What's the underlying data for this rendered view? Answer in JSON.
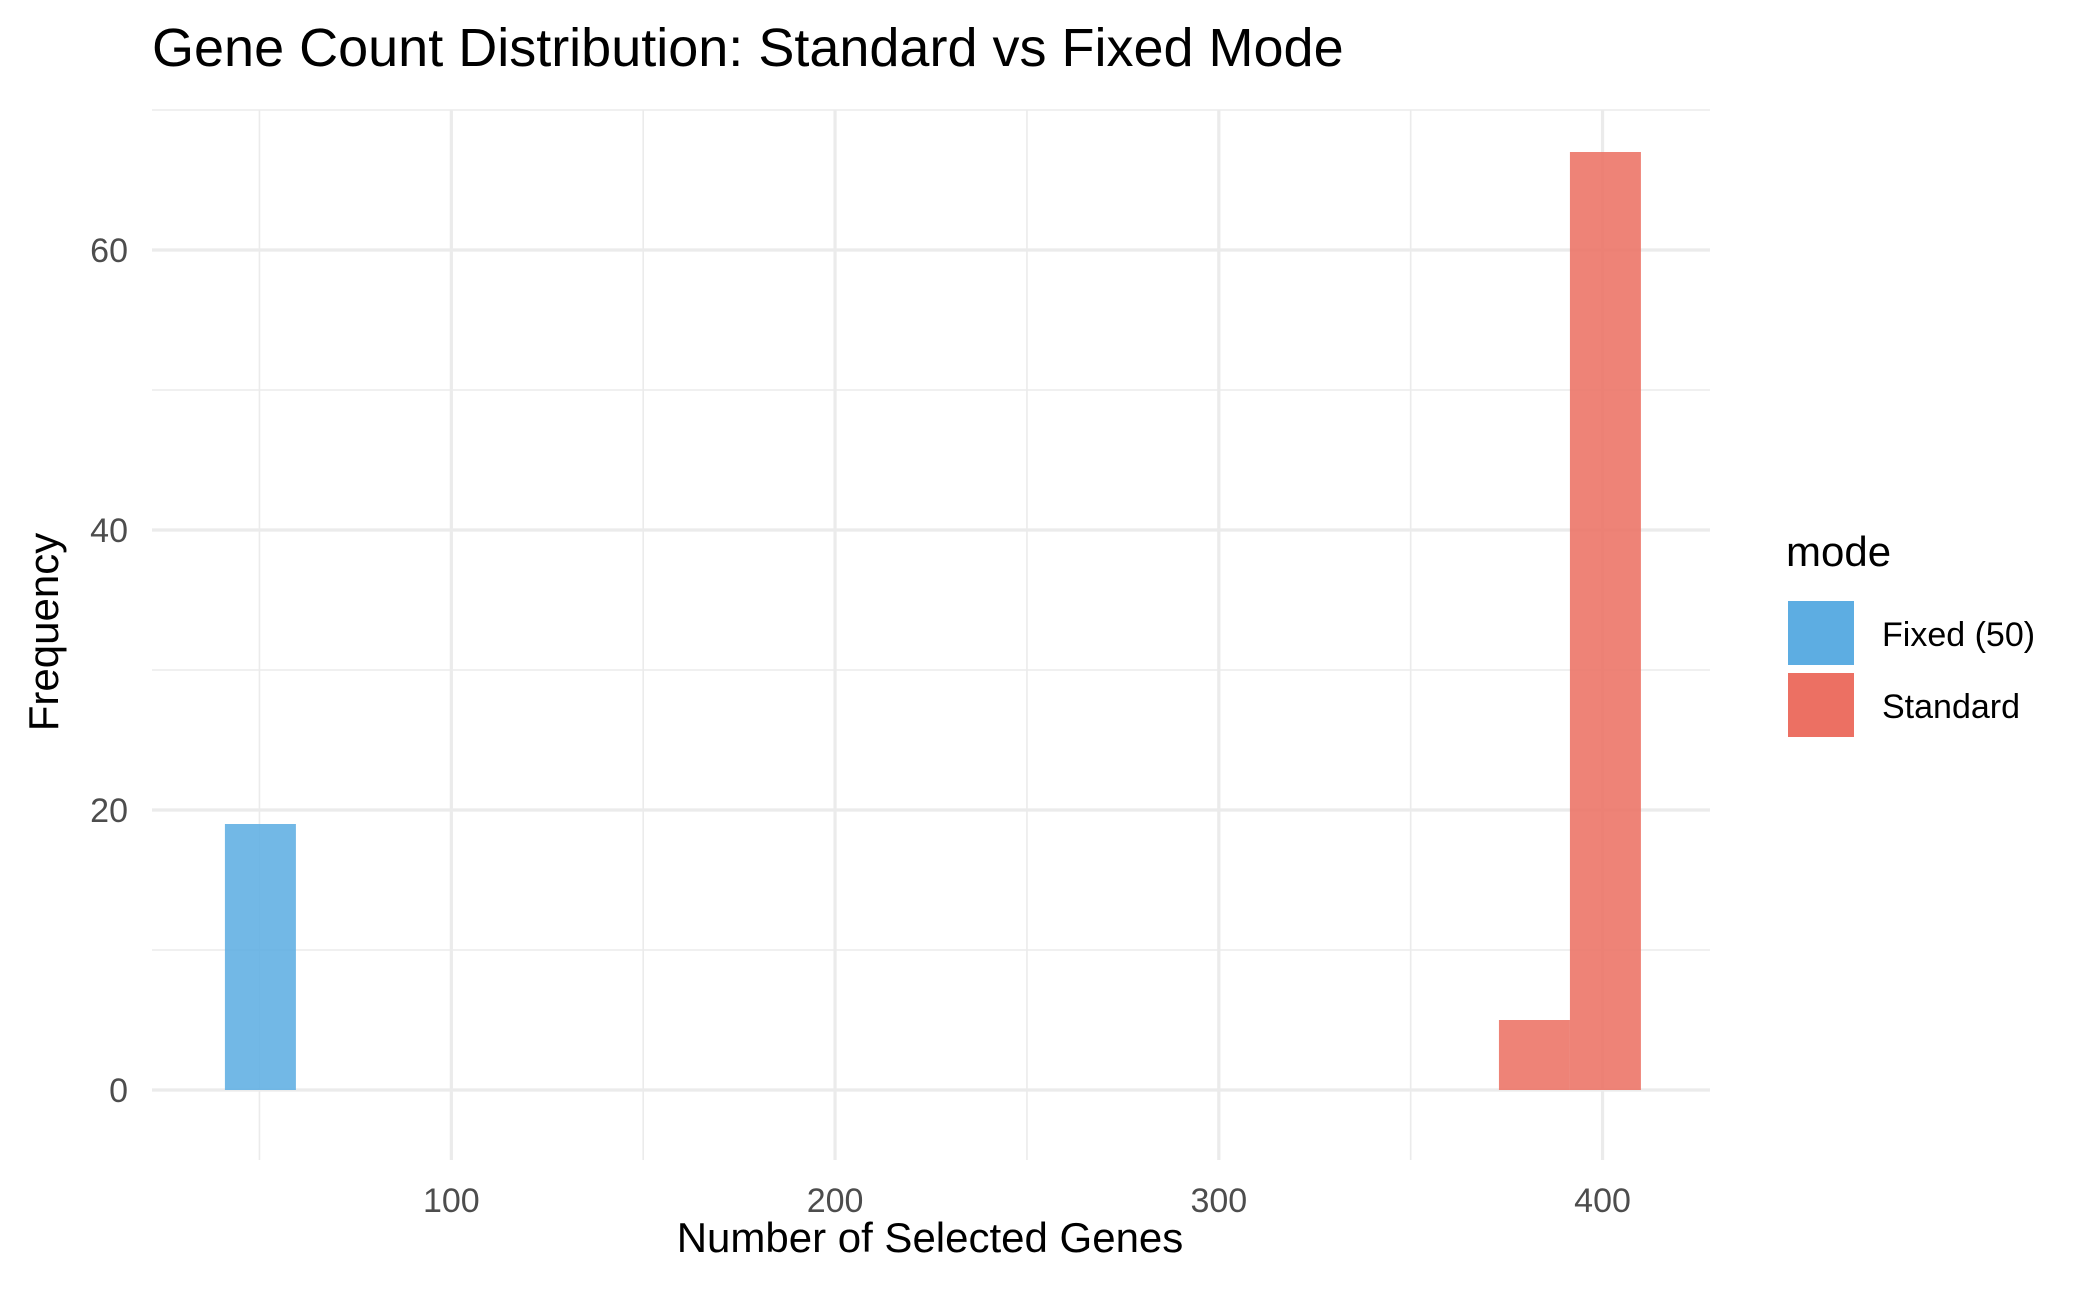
{
  "chart_data": {
    "type": "bar",
    "title": "Gene Count Distribution: Standard vs Fixed Mode",
    "xlabel": "Number of Selected Genes",
    "ylabel": "Frequency",
    "xlim": [
      22,
      428
    ],
    "ylim": [
      -5,
      70
    ],
    "x_ticks": [
      100,
      200,
      300,
      400
    ],
    "x_minor_ticks": [
      50,
      150,
      250,
      350
    ],
    "y_ticks": [
      0,
      20,
      40,
      60
    ],
    "y_minor_ticks": [
      10,
      30,
      50,
      70
    ],
    "grid": true,
    "legend": {
      "title": "mode",
      "placement": "right",
      "entries": [
        {
          "label": "Fixed (50)",
          "color": "#5DADE2"
        },
        {
          "label": "Standard",
          "color": "#EC7063"
        }
      ]
    },
    "series": [
      {
        "name": "Fixed (50)",
        "color": "#5DADE2",
        "bins": [
          {
            "x0": 41,
            "x1": 59.5,
            "count": 19
          }
        ]
      },
      {
        "name": "Standard",
        "color": "#EC7063",
        "bins": [
          {
            "x0": 373,
            "x1": 391.5,
            "count": 5
          },
          {
            "x0": 391.5,
            "x1": 410,
            "count": 67
          }
        ]
      }
    ]
  }
}
